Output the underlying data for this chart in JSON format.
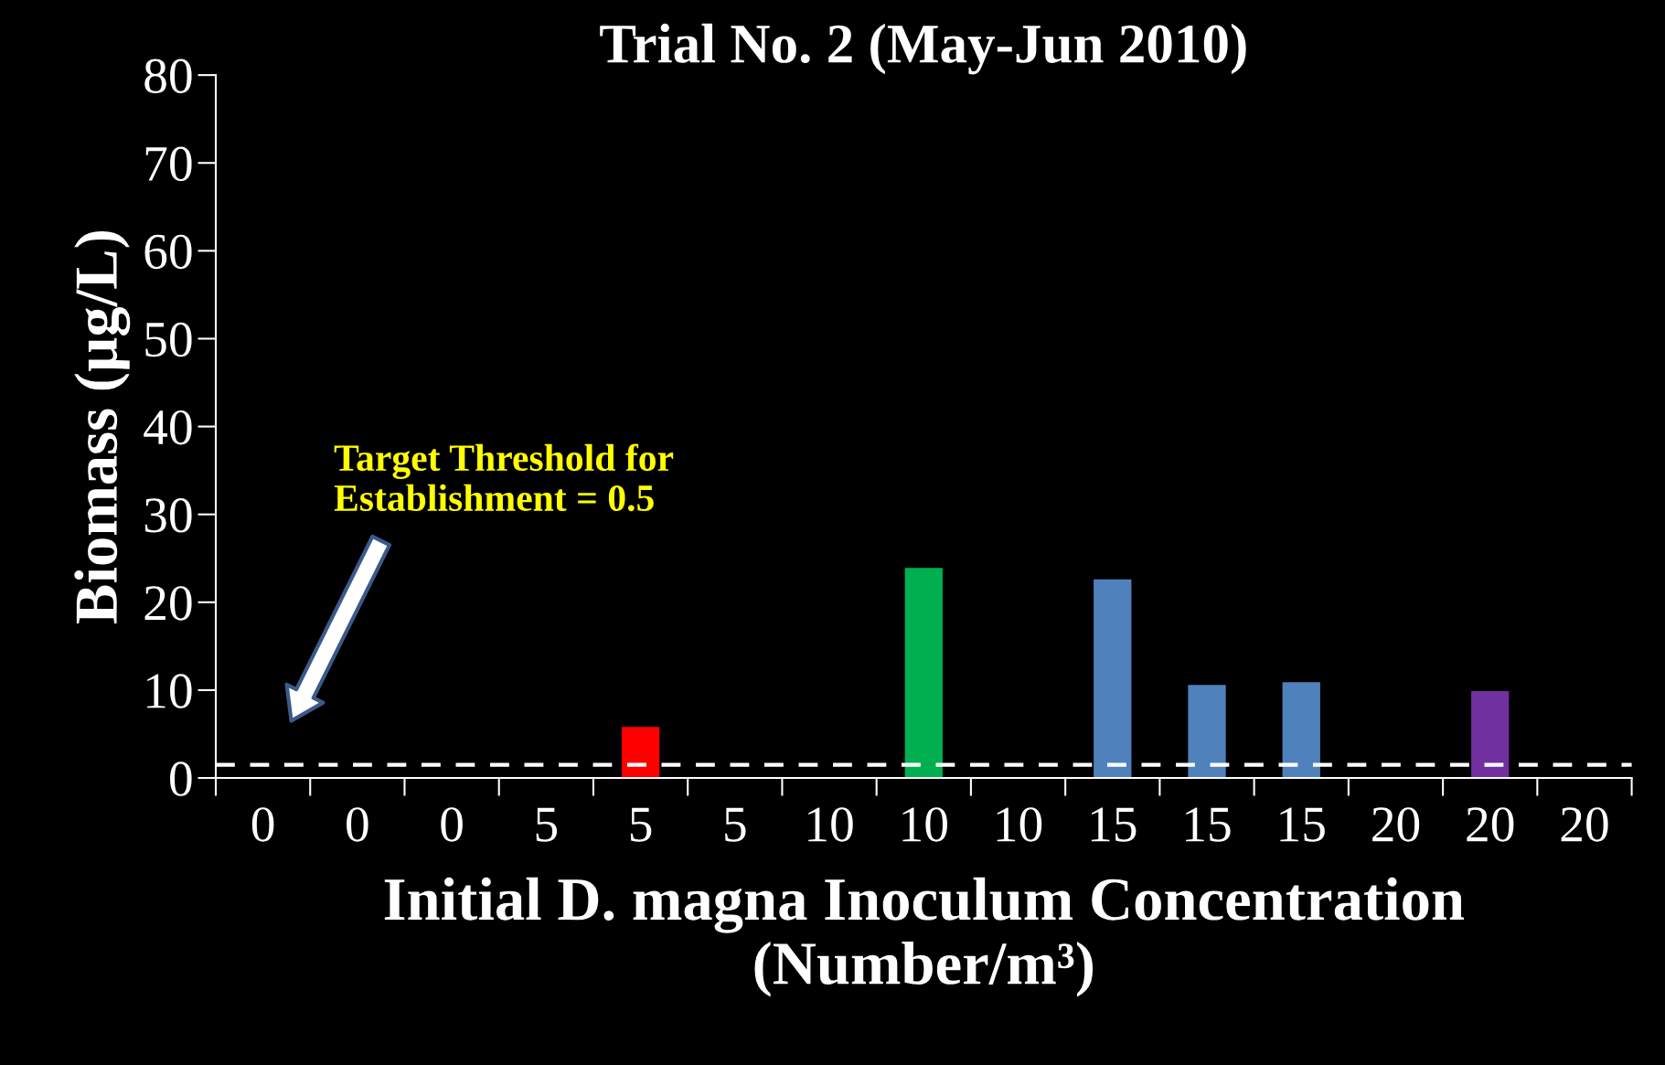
{
  "chart_data": {
    "type": "bar",
    "title": "Trial No. 2 (May-Jun 2010)",
    "xlabel": "Initial D. magna Inoculum Concentration\n(Number/m³)",
    "ylabel": "Biomass (µg/L)",
    "categories": [
      "0",
      "0",
      "0",
      "5",
      "5",
      "5",
      "10",
      "10",
      "10",
      "15",
      "15",
      "15",
      "20",
      "20",
      "20"
    ],
    "values": [
      0,
      0,
      0,
      0,
      5.8,
      0,
      0,
      23.9,
      0,
      22.6,
      10.6,
      10.9,
      0,
      9.9,
      0
    ],
    "colors": [
      "#ff0000",
      "#ff0000",
      "#ff0000",
      "#ff0000",
      "#ff0000",
      "#ff0000",
      "#00b050",
      "#00b050",
      "#00b050",
      "#4f81bd",
      "#4f81bd",
      "#4f81bd",
      "#7030a0",
      "#7030a0",
      "#7030a0"
    ],
    "ylim": [
      0,
      80
    ],
    "yticks": [
      0,
      10,
      20,
      30,
      40,
      50,
      60,
      70,
      80
    ],
    "grid": false,
    "legend": false,
    "annotations": [
      "Target Threshold for\nEstablishment = 0.5"
    ],
    "ref_lines": [
      {
        "axis": "y",
        "value": 1.5,
        "color": "#ffffff",
        "line_style": "dashed"
      }
    ]
  }
}
